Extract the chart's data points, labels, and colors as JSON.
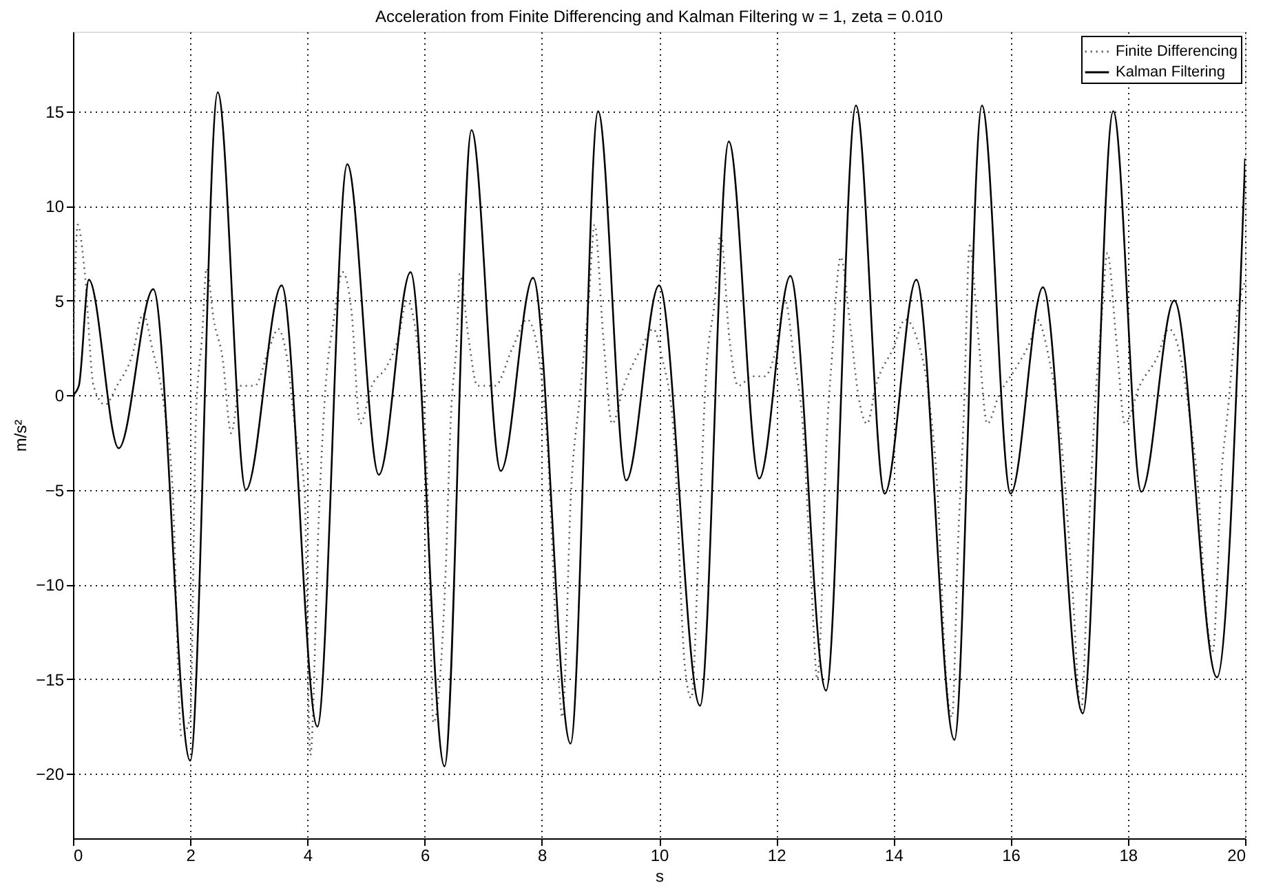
{
  "chart_data": {
    "type": "line",
    "title": "Acceleration from Finite Differencing and Kalman Filtering w =  1, zeta = 0.010",
    "xlabel": "s",
    "ylabel": "m/s²",
    "xlim": [
      0,
      20
    ],
    "ylim": [
      -23.4,
      19.2
    ],
    "xticks": [
      0,
      2,
      4,
      6,
      8,
      10,
      12,
      14,
      16,
      18,
      20
    ],
    "yticks": [
      -20,
      -15,
      -10,
      -5,
      0,
      5,
      10,
      15
    ],
    "grid": true,
    "legend": "top right",
    "series": [
      {
        "name": "Finite Differencing",
        "color": "#555555",
        "line_style": "dotted",
        "x": [
          0,
          0.08,
          0.2,
          0.35,
          0.55,
          0.75,
          1.0,
          1.2,
          1.35,
          1.55,
          1.7,
          1.85,
          2.0,
          2.1,
          2.2,
          2.28,
          2.4,
          2.55,
          2.7,
          2.85,
          3.1,
          3.35,
          3.5,
          3.65,
          3.8,
          3.95,
          4.05,
          4.2,
          4.3,
          4.45,
          4.6,
          4.75,
          4.9,
          5.1,
          5.35,
          5.55,
          5.7,
          5.9,
          6.05,
          6.15,
          6.35,
          6.45,
          6.55,
          6.6,
          6.75,
          6.9,
          7.2,
          7.5,
          7.75,
          7.95,
          8.1,
          8.29,
          8.35,
          8.5,
          8.65,
          8.8,
          8.9,
          9.05,
          9.2,
          9.4,
          9.7,
          9.9,
          10.05,
          10.25,
          10.44,
          10.55,
          10.7,
          10.8,
          10.95,
          11.05,
          11.2,
          11.35,
          11.6,
          11.8,
          12.0,
          12.15,
          12.3,
          12.45,
          12.6,
          12.7,
          12.75,
          12.85,
          12.95,
          13.1,
          13.25,
          13.4,
          13.55,
          13.7,
          14.0,
          14.2,
          14.4,
          14.6,
          14.75,
          14.9,
          15.0,
          15.1,
          15.2,
          15.3,
          15.45,
          15.6,
          15.8,
          16.1,
          16.35,
          16.45,
          16.65,
          16.85,
          17.05,
          17.2,
          17.35,
          17.45,
          17.55,
          17.65,
          17.8,
          17.95,
          18.2,
          18.5,
          18.7,
          18.9,
          19.05,
          19.2,
          19.35,
          19.45,
          19.6,
          19.7,
          19.85,
          20
        ],
        "values": [
          2,
          9,
          6.5,
          0.5,
          -0.5,
          0.5,
          2,
          4.3,
          2.5,
          -0.5,
          -5,
          -18,
          -17,
          -1,
          3,
          6.7,
          4,
          2,
          -2,
          0.5,
          0.5,
          2.5,
          3.5,
          2,
          -2,
          -5,
          -19,
          -6,
          0,
          4,
          6.5,
          4.5,
          -1.5,
          0.5,
          1.5,
          3,
          5,
          2,
          -5,
          -17.3,
          -10,
          -1,
          3,
          6.4,
          3,
          0.5,
          0.5,
          2.5,
          4,
          2,
          -3,
          -15.2,
          -17,
          -5,
          0,
          5,
          9,
          3,
          -1.5,
          0.5,
          2.5,
          3.5,
          2,
          -2,
          -14.3,
          -16,
          -6,
          1,
          5,
          8.5,
          3,
          0.5,
          1,
          1,
          2.5,
          5,
          2,
          -1.5,
          -10,
          -15,
          -13,
          -3,
          2,
          7.3,
          4,
          0,
          -1.5,
          0.5,
          2.5,
          4,
          3,
          0,
          -5,
          -15,
          -17,
          -8,
          -1,
          7.9,
          3,
          -1.5,
          0,
          1.5,
          3,
          4,
          2,
          -2,
          -10,
          -16.7,
          -6,
          0,
          4,
          7.5,
          3,
          -1.5,
          0.5,
          2,
          3.5,
          2,
          -1,
          -5,
          -12,
          -13.5,
          -4,
          -1,
          4,
          6
        ]
      },
      {
        "name": "Kalman Filtering",
        "color": "#000000",
        "line_style": "solid",
        "x": [
          0,
          0.1,
          0.27,
          0.78,
          1.37,
          2.0,
          2.47,
          2.95,
          3.56,
          4.17,
          4.68,
          5.22,
          5.76,
          6.34,
          6.8,
          7.3,
          7.85,
          8.49,
          8.96,
          9.44,
          10.0,
          10.7,
          11.19,
          11.71,
          12.24,
          12.85,
          13.36,
          13.85,
          14.39,
          15.04,
          15.51,
          16.0,
          16.55,
          17.23,
          17.75,
          18.23,
          18.79,
          19.52,
          20
        ],
        "values": [
          0,
          0.5,
          6.1,
          -2.8,
          5.6,
          -19.3,
          16,
          -5,
          5.8,
          -17.5,
          12.2,
          -4.2,
          6.5,
          -19.6,
          14,
          -4,
          6.2,
          -18.4,
          15,
          -4.5,
          5.8,
          -16.4,
          13.4,
          -4.4,
          6.3,
          -15.6,
          15.3,
          -5.2,
          6.1,
          -18.2,
          15.3,
          -5.2,
          5.7,
          -16.8,
          15,
          -5.1,
          5,
          -14.9,
          12.5
        ]
      }
    ]
  }
}
